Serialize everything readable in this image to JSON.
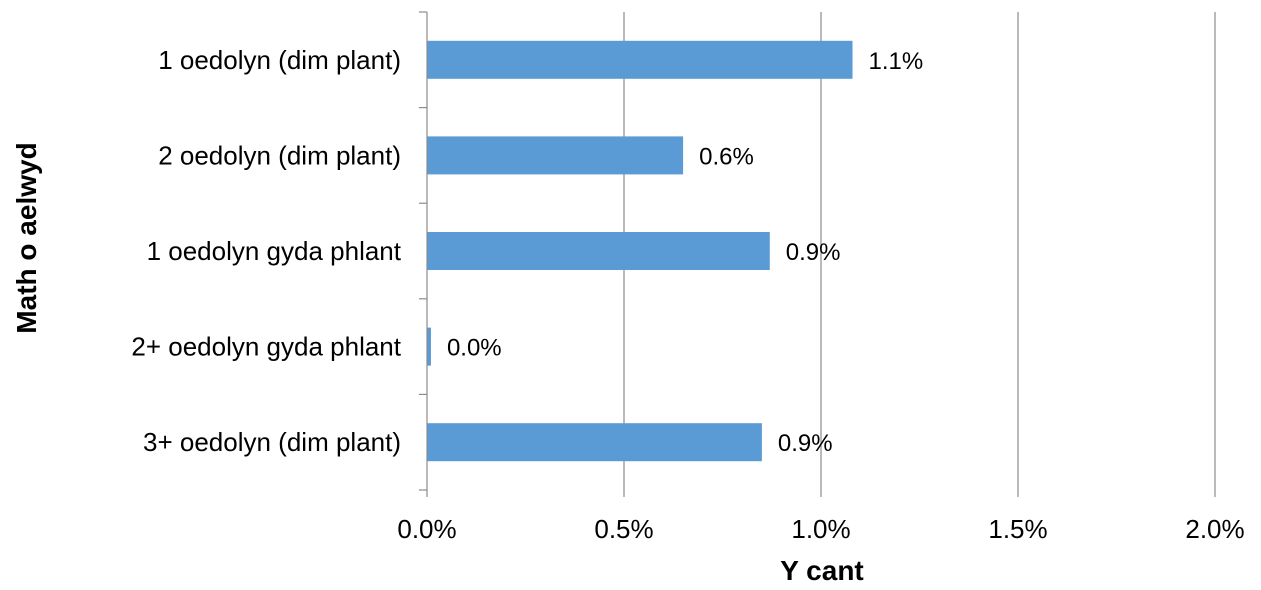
{
  "chart_data": {
    "type": "bar",
    "orientation": "horizontal",
    "categories": [
      "1 oedolyn (dim plant)",
      "2 oedolyn (dim plant)",
      "1 oedolyn gyda phlant",
      "2+ oedolyn gyda phlant",
      "3+ oedolyn (dim plant)"
    ],
    "values": [
      1.08,
      0.65,
      0.87,
      0.01,
      0.85
    ],
    "data_labels": [
      "1.1%",
      "0.6%",
      "0.9%",
      "0.0%",
      "0.9%"
    ],
    "title": "",
    "xlabel": "Y cant",
    "ylabel": "Math o aelwyd",
    "xlim": [
      0,
      2.0
    ],
    "x_ticks": [
      0,
      0.5,
      1.0,
      1.5,
      2.0
    ],
    "x_tick_labels": [
      "0.0%",
      "0.5%",
      "1.0%",
      "1.5%",
      "2.0%"
    ],
    "grid": "vertical",
    "legend": "none",
    "bar_color": "#5b9bd5",
    "grid_color": "#8c8c8c"
  }
}
